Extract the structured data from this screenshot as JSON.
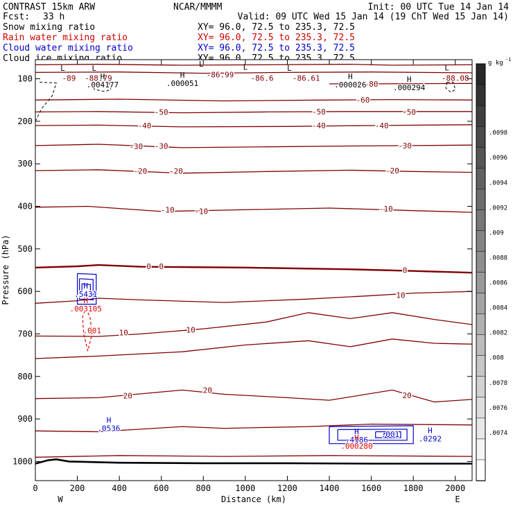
{
  "header": {
    "model": "CONTRAST 15km ARW",
    "center": "NCAR/MMMM",
    "init": "Init: 00 UTC Tue 14 Jan 14",
    "fcst_label": "Fcst:",
    "fcst_value": "33 h",
    "valid": "Valid: 09 UTC Wed 15 Jan 14 (19 ChT Wed 15 Jan 14)"
  },
  "fields": [
    {
      "name": "Snow mixing ratio",
      "xy": "XY=  96.0, 72.5 to 235.3, 72.5",
      "color": "#000000"
    },
    {
      "name": "Rain water mixing ratio",
      "xy": "XY=  96.0, 72.5 to 235.3, 72.5",
      "color": "#cc0000"
    },
    {
      "name": "Cloud water mixing ratio",
      "xy": "XY=  96.0, 72.5 to 235.3, 72.5",
      "color": "#0000cc"
    },
    {
      "name": "Cloud ice mixing ratio",
      "xy": "XY=  96.0, 72.5 to 235.3, 72.5",
      "color": "#000000"
    }
  ],
  "colors": {
    "temperature": "#800000",
    "rain": "#dd0000",
    "cloud_water": "#0000cc",
    "ice": "#000000",
    "terrain": "#000000"
  },
  "chart_data": {
    "type": "cross-section contour",
    "xlabel": "Distance (km)",
    "ylabel": "Pressure (hPa)",
    "xlim": [
      0,
      2080
    ],
    "ylim": [
      1045,
      55
    ],
    "xticks": [
      0,
      200,
      400,
      600,
      800,
      1000,
      1200,
      1400,
      1600,
      1800,
      2000
    ],
    "yticks": [
      100,
      200,
      300,
      400,
      500,
      600,
      700,
      800,
      900,
      1000
    ],
    "x_end_labels": {
      "left": "W",
      "right": "E"
    },
    "colorbar": {
      "unit": "g kg",
      "unit_exp": "-1",
      "labels": [
        ".0098",
        ".0096",
        ".0094",
        ".0092",
        ".009",
        ".0088",
        ".0086",
        ".0084",
        ".0082",
        ".008",
        ".0078",
        ".0076",
        ".0074"
      ],
      "bins": 20
    },
    "temperature_contours": [
      {
        "level": "-80",
        "points": [
          [
            0,
            67
          ],
          [
            300,
            66
          ],
          [
            700,
            68
          ],
          [
            1100,
            67
          ],
          [
            1500,
            66
          ],
          [
            1700,
            68
          ],
          [
            2080,
            67
          ]
        ]
      },
      {
        "level": "-70",
        "points": [
          [
            0,
            85
          ],
          [
            400,
            84
          ],
          [
            800,
            87
          ],
          [
            1200,
            85
          ],
          [
            1600,
            84
          ],
          [
            2080,
            86
          ]
        ]
      },
      {
        "level": "-80",
        "points": [
          [
            1400,
            112
          ],
          [
            1500,
            112
          ],
          [
            1600,
            112
          ],
          [
            2080,
            111
          ]
        ]
      },
      {
        "level": "-60",
        "points": [
          [
            0,
            150
          ],
          [
            400,
            148
          ],
          [
            900,
            152
          ],
          [
            1400,
            150
          ],
          [
            1700,
            149
          ],
          [
            2080,
            150
          ]
        ]
      },
      {
        "level": "-50",
        "points": [
          [
            0,
            178
          ],
          [
            300,
            177
          ],
          [
            700,
            180
          ],
          [
            1100,
            178
          ],
          [
            1500,
            177
          ],
          [
            1800,
            177
          ],
          [
            2080,
            177
          ]
        ]
      },
      {
        "level": "-40",
        "points": [
          [
            0,
            210
          ],
          [
            300,
            209
          ],
          [
            700,
            213
          ],
          [
            1200,
            212
          ],
          [
            1600,
            210
          ],
          [
            2080,
            208
          ]
        ]
      },
      {
        "level": "-30",
        "points": [
          [
            0,
            257
          ],
          [
            300,
            254
          ],
          [
            700,
            262
          ],
          [
            1100,
            260
          ],
          [
            1500,
            258
          ],
          [
            1800,
            257
          ],
          [
            2080,
            256
          ]
        ]
      },
      {
        "level": "-20",
        "points": [
          [
            0,
            316
          ],
          [
            300,
            314
          ],
          [
            700,
            322
          ],
          [
            1100,
            318
          ],
          [
            1500,
            315
          ],
          [
            1800,
            318
          ],
          [
            2080,
            320
          ]
        ]
      },
      {
        "level": "-10",
        "points": [
          [
            0,
            402
          ],
          [
            250,
            400
          ],
          [
            600,
            412
          ],
          [
            1000,
            408
          ],
          [
            1400,
            404
          ],
          [
            1800,
            410
          ],
          [
            2080,
            414
          ]
        ]
      },
      {
        "level": "0",
        "points": [
          [
            0,
            544
          ],
          [
            200,
            541
          ],
          [
            300,
            538
          ],
          [
            500,
            542
          ],
          [
            1000,
            544
          ],
          [
            1500,
            548
          ],
          [
            1800,
            552
          ],
          [
            2080,
            556
          ]
        ],
        "bold": true
      },
      {
        "level": "10",
        "points": [
          [
            0,
            628
          ],
          [
            200,
            622
          ],
          [
            300,
            616
          ],
          [
            500,
            620
          ],
          [
            900,
            626
          ],
          [
            1300,
            618
          ],
          [
            1600,
            610
          ],
          [
            1800,
            604
          ],
          [
            2080,
            600
          ]
        ]
      },
      {
        "level": "10",
        "points": [
          [
            0,
            705
          ],
          [
            300,
            706
          ],
          [
            500,
            700
          ],
          [
            800,
            688
          ],
          [
            1100,
            672
          ],
          [
            1300,
            650
          ],
          [
            1500,
            664
          ],
          [
            1700,
            650
          ],
          [
            1900,
            666
          ],
          [
            2080,
            678
          ]
        ]
      },
      {
        "level": "",
        "points": [
          [
            0,
            758
          ],
          [
            300,
            752
          ],
          [
            700,
            742
          ],
          [
            1000,
            726
          ],
          [
            1300,
            716
          ],
          [
            1500,
            730
          ],
          [
            1700,
            712
          ],
          [
            1900,
            722
          ],
          [
            2080,
            724
          ]
        ]
      },
      {
        "level": "20",
        "points": [
          [
            0,
            852
          ],
          [
            300,
            850
          ],
          [
            700,
            832
          ],
          [
            900,
            842
          ],
          [
            1200,
            850
          ],
          [
            1400,
            856
          ],
          [
            1700,
            832
          ],
          [
            1900,
            860
          ],
          [
            2080,
            854
          ]
        ]
      },
      {
        "level": "",
        "points": [
          [
            0,
            928
          ],
          [
            300,
            930
          ],
          [
            700,
            918
          ],
          [
            900,
            922
          ],
          [
            1300,
            918
          ],
          [
            1600,
            912
          ],
          [
            2080,
            914
          ]
        ]
      },
      {
        "level": "",
        "points": [
          [
            0,
            990
          ],
          [
            400,
            986
          ],
          [
            900,
            988
          ],
          [
            1400,
            986
          ],
          [
            2080,
            988
          ]
        ]
      }
    ],
    "terrain_points": [
      [
        0,
        1005
      ],
      [
        60,
        997
      ],
      [
        100,
        995
      ],
      [
        160,
        1000
      ],
      [
        400,
        1003
      ],
      [
        800,
        1004
      ],
      [
        1200,
        1004
      ],
      [
        1600,
        1005
      ],
      [
        2080,
        1005
      ]
    ],
    "temperature_labels": [
      {
        "text": "-89",
        "x": 160,
        "p": 98
      },
      {
        "text": "-88.79",
        "x": 300,
        "p": 98
      },
      {
        "text": "-86.99",
        "x": 880,
        "p": 90
      },
      {
        "text": "-86.6",
        "x": 1080,
        "p": 98
      },
      {
        "text": "-86.61",
        "x": 1290,
        "p": 98
      },
      {
        "text": "-80",
        "x": 1600,
        "p": 112
      },
      {
        "text": "-88.08",
        "x": 2000,
        "p": 98
      },
      {
        "text": "-60",
        "x": 1560,
        "p": 150
      },
      {
        "text": "-50",
        "x": 600,
        "p": 178
      },
      {
        "text": "-50",
        "x": 1350,
        "p": 177
      },
      {
        "text": "-50",
        "x": 1780,
        "p": 178
      },
      {
        "text": "-40",
        "x": 520,
        "p": 210
      },
      {
        "text": "-40",
        "x": 1350,
        "p": 210
      },
      {
        "text": "-40",
        "x": 1650,
        "p": 210
      },
      {
        "text": "-30",
        "x": 480,
        "p": 259
      },
      {
        "text": "-30",
        "x": 600,
        "p": 258
      },
      {
        "text": "-30",
        "x": 1760,
        "p": 257
      },
      {
        "text": "-20",
        "x": 500,
        "p": 317
      },
      {
        "text": "-20",
        "x": 670,
        "p": 317
      },
      {
        "text": "-20",
        "x": 1700,
        "p": 316
      },
      {
        "text": "-10",
        "x": 630,
        "p": 408
      },
      {
        "text": "-10",
        "x": 790,
        "p": 411
      },
      {
        "text": "-10",
        "x": 1670,
        "p": 406
      },
      {
        "text": "0",
        "x": 540,
        "p": 541
      },
      {
        "text": "0",
        "x": 600,
        "p": 541
      },
      {
        "text": "0",
        "x": 1760,
        "p": 550
      },
      {
        "text": "10",
        "x": 1740,
        "p": 609
      },
      {
        "text": "10",
        "x": 420,
        "p": 697
      },
      {
        "text": "10",
        "x": 740,
        "p": 690
      },
      {
        "text": "20",
        "x": 440,
        "p": 845
      },
      {
        "text": "20",
        "x": 820,
        "p": 832
      },
      {
        "text": "20",
        "x": 1770,
        "p": 844
      }
    ],
    "extrema": [
      {
        "kind": "L",
        "text": "",
        "x": 130,
        "p": 88,
        "color": "ice"
      },
      {
        "kind": "L",
        "text": "",
        "x": 280,
        "p": 88,
        "color": "ice"
      },
      {
        "kind": "H",
        "text": ".004177",
        "x": 320,
        "p": 107,
        "color": "ice"
      },
      {
        "kind": "L",
        "text": "",
        "x": 790,
        "p": 78,
        "color": "ice"
      },
      {
        "kind": "H",
        "text": ".000051",
        "x": 700,
        "p": 104,
        "color": "ice"
      },
      {
        "kind": "L",
        "text": "",
        "x": 1000,
        "p": 85,
        "color": "ice"
      },
      {
        "kind": "L",
        "text": "",
        "x": 1210,
        "p": 88,
        "color": "ice"
      },
      {
        "kind": "H",
        "text": ".000026",
        "x": 1500,
        "p": 107,
        "color": "ice"
      },
      {
        "kind": "H",
        "text": ".000294",
        "x": 1780,
        "p": 114,
        "color": "ice"
      },
      {
        "kind": "L",
        "text": "",
        "x": 1960,
        "p": 87,
        "color": "ice"
      },
      {
        "kind": "H",
        "text": ".5431",
        "x": 240,
        "p": 600,
        "color": "cloud_water"
      },
      {
        "kind": "H",
        "text": ".003105",
        "x": 240,
        "p": 634,
        "color": "rain"
      },
      {
        "kind": "",
        "text": ".001",
        "x": 270,
        "p": 685,
        "color": "rain"
      },
      {
        "kind": "H",
        "text": ".0536",
        "x": 350,
        "p": 915,
        "color": "cloud_water"
      },
      {
        "kind": "H",
        "text": ".4186",
        "x": 1530,
        "p": 942,
        "color": "cloud_water"
      },
      {
        "kind": "H",
        "text": ".000280",
        "x": 1530,
        "p": 957,
        "color": "rain"
      },
      {
        "kind": "",
        "text": ".001",
        "x": 1690,
        "p": 929,
        "color": "cloud_water"
      },
      {
        "kind": "H",
        "text": ".0292",
        "x": 1880,
        "p": 940,
        "color": "cloud_water"
      }
    ],
    "cloud_water_contours": [
      [
        [
          200,
          558
        ],
        [
          290,
          560
        ],
        [
          290,
          630
        ],
        [
          200,
          630
        ],
        [
          200,
          558
        ]
      ],
      [
        [
          210,
          570
        ],
        [
          275,
          572
        ],
        [
          275,
          620
        ],
        [
          210,
          618
        ],
        [
          210,
          570
        ]
      ],
      [
        [
          222,
          582
        ],
        [
          262,
          584
        ],
        [
          262,
          610
        ],
        [
          222,
          608
        ],
        [
          222,
          582
        ]
      ],
      [
        [
          1400,
          918
        ],
        [
          1800,
          916
        ],
        [
          1800,
          958
        ],
        [
          1400,
          958
        ],
        [
          1400,
          918
        ]
      ],
      [
        [
          1440,
          925
        ],
        [
          1770,
          924
        ],
        [
          1770,
          950
        ],
        [
          1440,
          950
        ],
        [
          1440,
          925
        ]
      ],
      [
        [
          1620,
          930
        ],
        [
          1740,
          930
        ],
        [
          1740,
          944
        ],
        [
          1620,
          944
        ],
        [
          1620,
          930
        ]
      ],
      [
        [
          1660,
          934
        ],
        [
          1720,
          934
        ],
        [
          1720,
          941
        ],
        [
          1660,
          941
        ],
        [
          1660,
          934
        ]
      ]
    ],
    "rain_contour": [
      [
        240,
        640
      ],
      [
        260,
        660
      ],
      [
        270,
        700
      ],
      [
        250,
        740
      ],
      [
        230,
        700
      ],
      [
        225,
        660
      ],
      [
        240,
        640
      ]
    ],
    "ice_contours": [
      [
        [
          20,
          108
        ],
        [
          100,
          110
        ],
        [
          80,
          140
        ],
        [
          30,
          170
        ],
        [
          0,
          200
        ]
      ],
      [
        [
          280,
          105
        ],
        [
          350,
          108
        ],
        [
          360,
          125
        ],
        [
          330,
          130
        ],
        [
          280,
          125
        ],
        [
          280,
          105
        ]
      ],
      [
        [
          1960,
          108
        ],
        [
          1990,
          108
        ],
        [
          2000,
          125
        ],
        [
          1980,
          132
        ],
        [
          1955,
          122
        ],
        [
          1960,
          108
        ]
      ]
    ]
  }
}
